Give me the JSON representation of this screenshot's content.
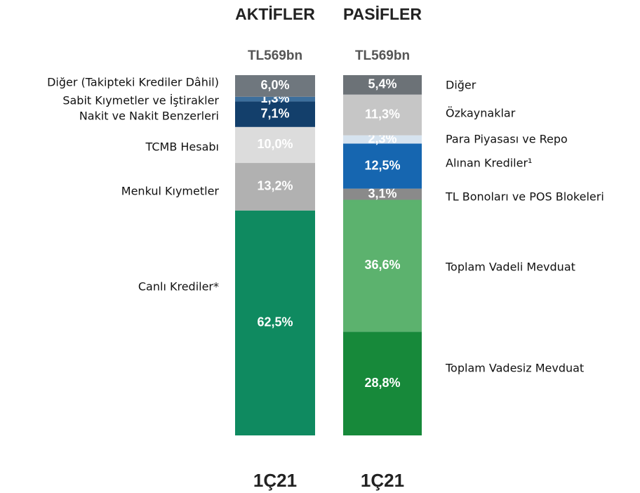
{
  "chart_data": [
    {
      "type": "stacked_bar",
      "title": "AKTİFLER",
      "subtitle": "TL569bn",
      "categories": [
        "1Ç21"
      ],
      "series": [
        {
          "name": "Canlı Krediler*",
          "color": "#0f8a60",
          "values": [
            62.5
          ],
          "value_labels": [
            "62,5%"
          ]
        },
        {
          "name": "Menkul Kıymetler",
          "color": "#b1b1b1",
          "values": [
            13.2
          ],
          "value_labels": [
            "13,2%"
          ]
        },
        {
          "name": "TCMB Hesabı",
          "color": "#dcdcdc",
          "values": [
            10.0
          ],
          "value_labels": [
            "10,0%"
          ]
        },
        {
          "name": "Nakit ve Nakit Benzerleri",
          "color": "#133f6b",
          "values": [
            7.1
          ],
          "value_labels": [
            "7,1%"
          ]
        },
        {
          "name": "Sabit Kıymetler ve İştirakler",
          "color": "#3d6f9c",
          "values": [
            1.3
          ],
          "value_labels": [
            "1,3%"
          ]
        },
        {
          "name": "Diğer (Takipteki Krediler Dâhil)",
          "color": "#6f777e",
          "values": [
            6.0
          ],
          "value_labels": [
            "6,0%"
          ]
        }
      ]
    },
    {
      "type": "stacked_bar",
      "title": "PASİFLER",
      "subtitle": "TL569bn",
      "categories": [
        "1Ç21"
      ],
      "series": [
        {
          "name": "Toplam Vadesiz Mevduat",
          "color": "#17893a",
          "values": [
            28.8
          ],
          "value_labels": [
            "28,8%"
          ]
        },
        {
          "name": "Toplam Vadeli Mevduat",
          "color": "#5cb26e",
          "values": [
            36.6
          ],
          "value_labels": [
            "36,6%"
          ]
        },
        {
          "name": "TL Bonoları ve POS Blokeleri",
          "color": "#8a8a8a",
          "values": [
            3.1
          ],
          "value_labels": [
            "3,1%"
          ]
        },
        {
          "name": "Alınan Krediler¹",
          "color": "#1666b0",
          "values": [
            12.5
          ],
          "value_labels": [
            "12,5%"
          ]
        },
        {
          "name": "Para Piyasası ve Repo",
          "color": "#d6e3ef",
          "values": [
            2.3
          ],
          "value_labels": [
            "2,3%"
          ]
        },
        {
          "name": "Özkaynaklar",
          "color": "#c6c6c6",
          "values": [
            11.3
          ],
          "value_labels": [
            "11,3%"
          ]
        },
        {
          "name": "Diğer",
          "color": "#6c7277",
          "values": [
            5.4
          ],
          "value_labels": [
            "5,4%"
          ]
        }
      ]
    }
  ]
}
